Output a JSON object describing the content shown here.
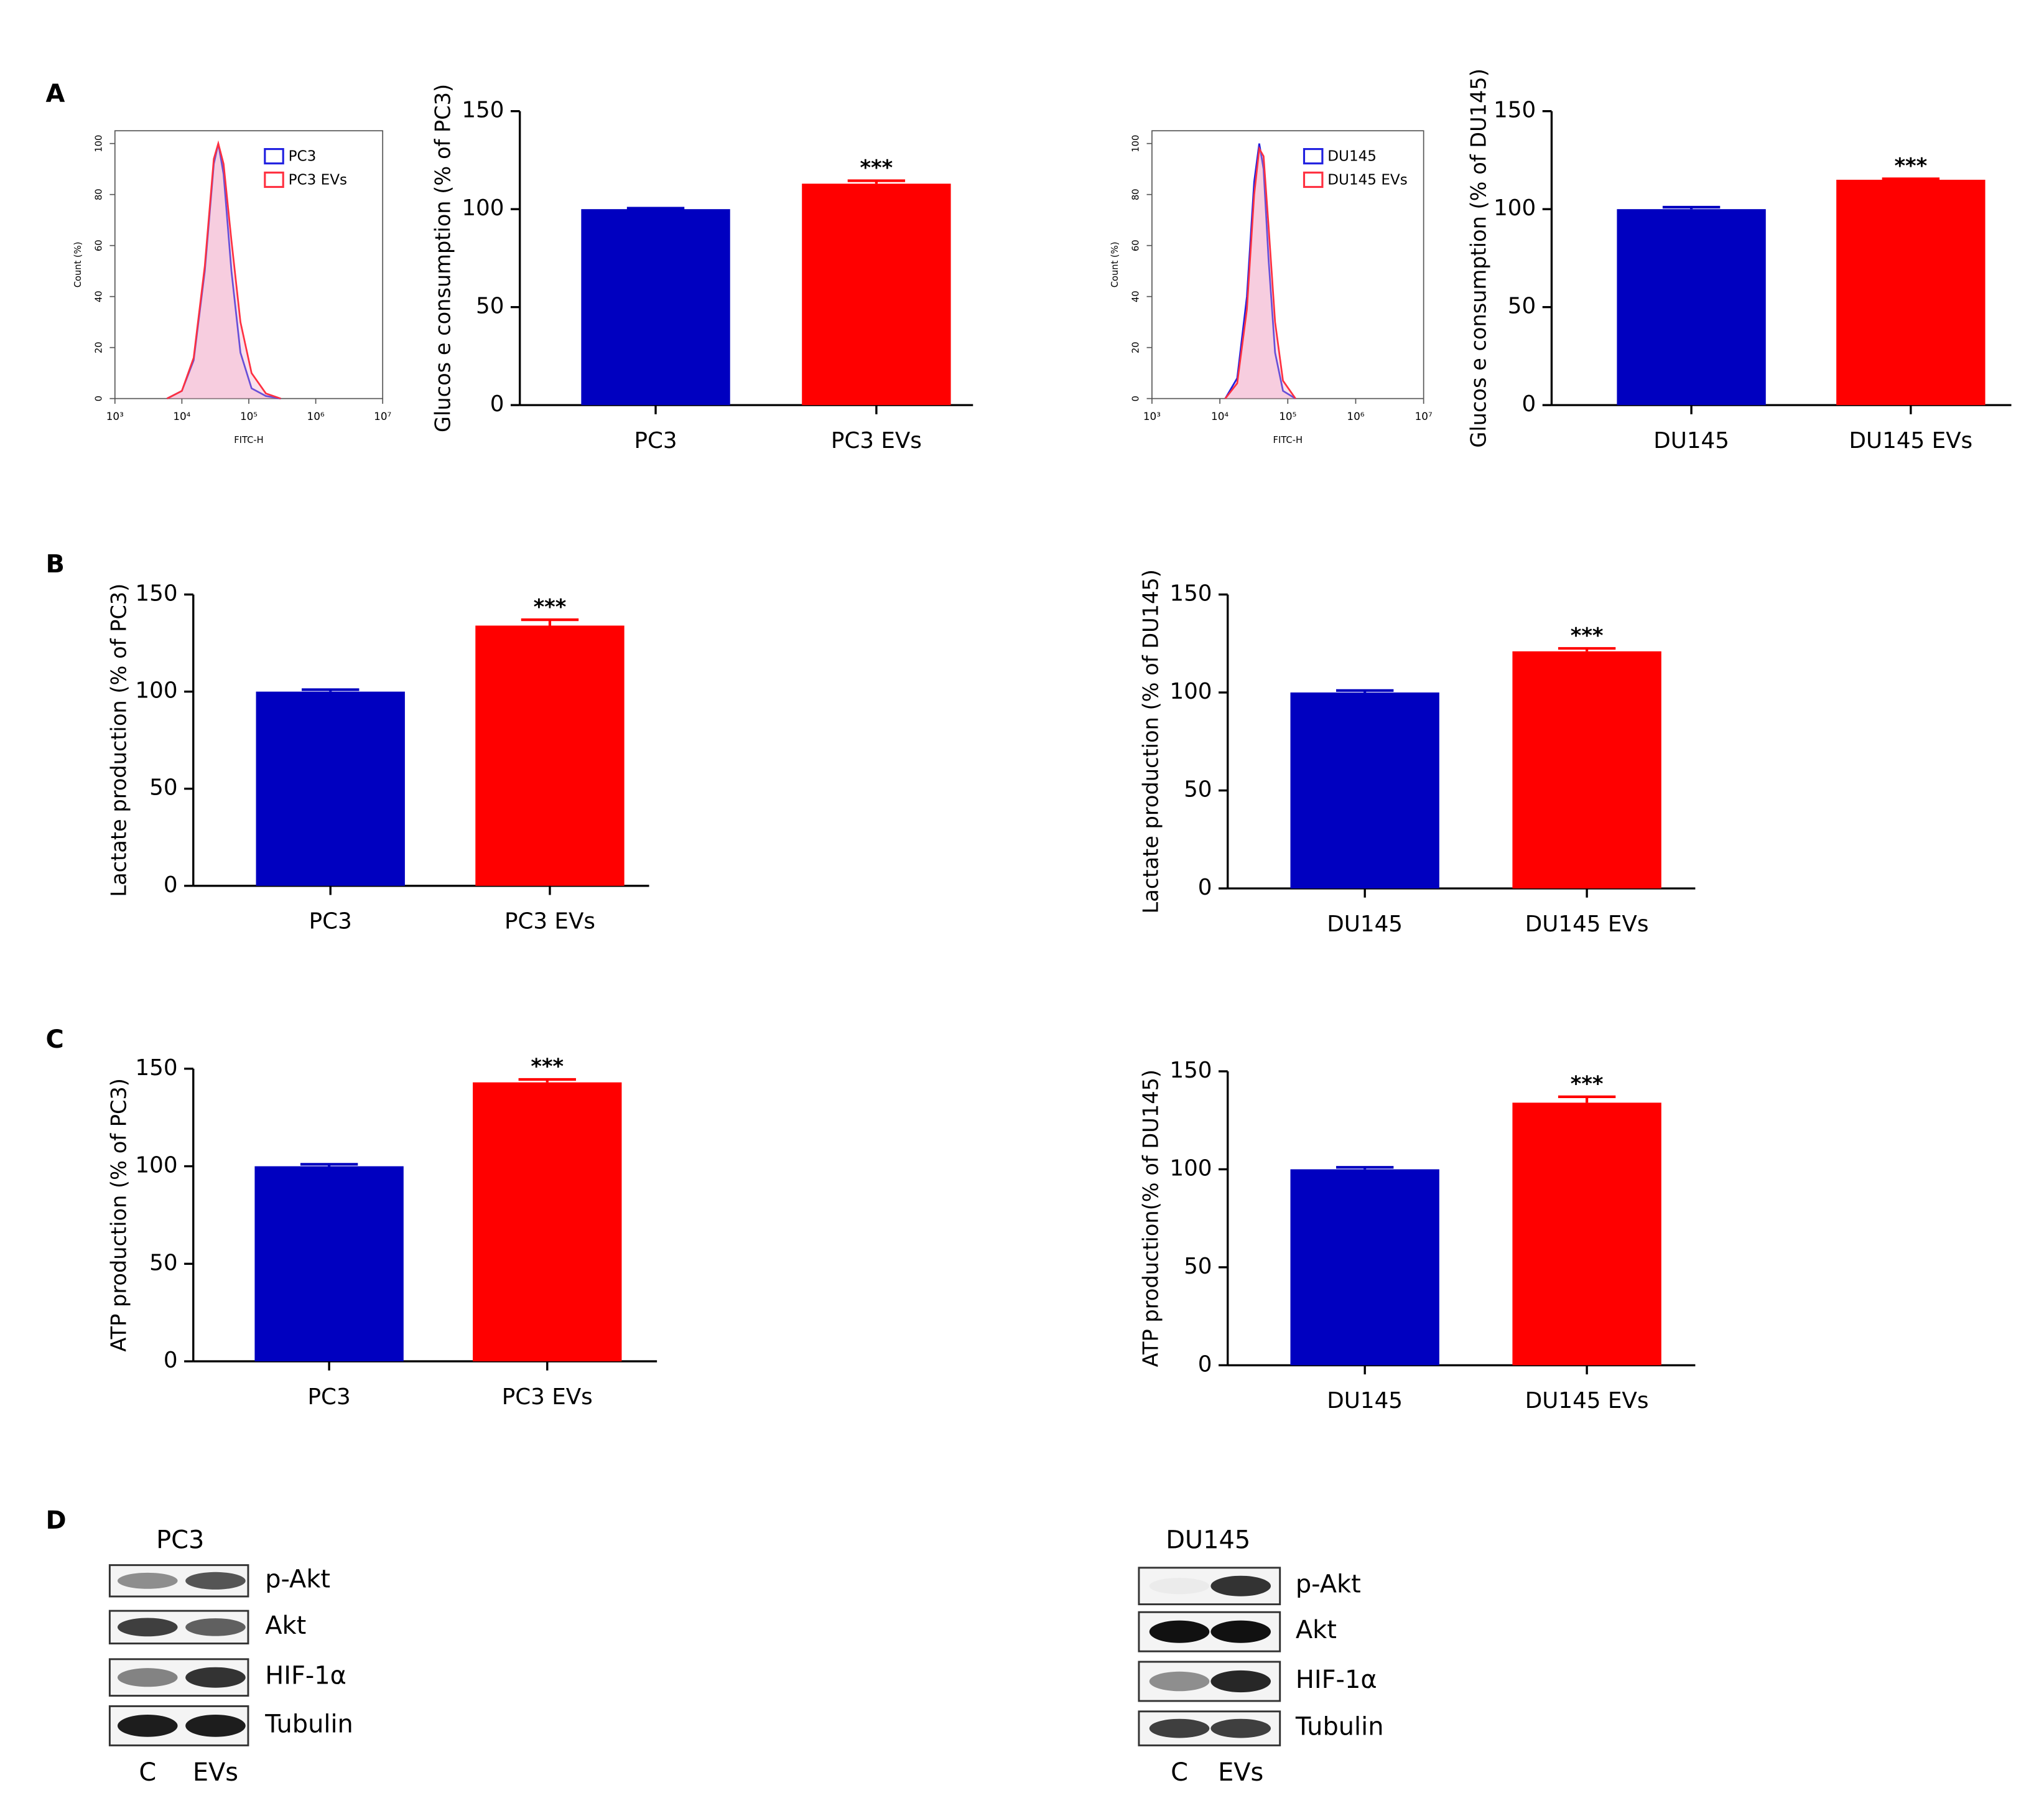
{
  "panel_labels": [
    "A",
    "B",
    "C",
    "D"
  ],
  "chart_data": [
    {
      "type": "line",
      "xlabel": "FITC-H",
      "ylabel": "Count (%)",
      "xscale": "log",
      "xlim": [
        1000,
        10000000
      ],
      "xticks": [
        {
          "value": 1000,
          "label": "10³"
        },
        {
          "value": 10000,
          "label": "10⁴"
        },
        {
          "value": 100000,
          "label": "10⁵"
        },
        {
          "value": 1000000,
          "label": "10⁶"
        },
        {
          "value": 10000000,
          "label": "10⁷"
        }
      ],
      "ylim": [
        0,
        105
      ],
      "yticks": [
        0,
        20,
        40,
        60,
        80,
        100
      ],
      "legend": "top-right",
      "series": [
        {
          "name": "PC3",
          "color": "#2020e0",
          "x": [
            6000,
            10000,
            15000,
            22000,
            30000,
            35000,
            42000,
            55000,
            75000,
            110000,
            180000,
            300000
          ],
          "values": [
            0,
            3,
            15,
            50,
            92,
            100,
            88,
            50,
            18,
            4,
            1,
            0
          ]
        },
        {
          "name": "PC3 EVs",
          "color": "#ff3040",
          "x": [
            6000,
            10000,
            15000,
            22000,
            30000,
            35000,
            42000,
            55000,
            75000,
            110000,
            180000,
            300000
          ],
          "values": [
            0,
            3,
            16,
            52,
            94,
            100,
            92,
            62,
            30,
            10,
            2,
            0
          ]
        }
      ]
    },
    {
      "type": "bar",
      "ylabel": "Glucos e consumption (% of PC3)",
      "categories": [
        "PC3",
        "PC3 EVs"
      ],
      "values": [
        100,
        113
      ],
      "errors": [
        0.5,
        1.5
      ],
      "colors": [
        "#0000c0",
        "#ff0000"
      ],
      "ylim": [
        0,
        150
      ],
      "yticks": [
        0,
        50,
        100,
        150
      ],
      "annotations": [
        {
          "text": "***",
          "x": "PC3 EVs"
        }
      ]
    },
    {
      "type": "line",
      "xlabel": "FITC-H",
      "ylabel": "Count (%)",
      "xscale": "log",
      "xlim": [
        1000,
        10000000
      ],
      "xticks": [
        {
          "value": 1000,
          "label": "10³"
        },
        {
          "value": 10000,
          "label": "10⁴"
        },
        {
          "value": 100000,
          "label": "10⁵"
        },
        {
          "value": 1000000,
          "label": "10⁶"
        },
        {
          "value": 10000000,
          "label": "10⁷"
        }
      ],
      "ylim": [
        0,
        105
      ],
      "yticks": [
        0,
        20,
        40,
        60,
        80,
        100
      ],
      "legend": "top-right",
      "series": [
        {
          "name": "DU145",
          "color": "#2020e0",
          "x": [
            12000,
            18000,
            25000,
            32000,
            38000,
            44000,
            52000,
            65000,
            85000,
            130000
          ],
          "values": [
            0,
            8,
            40,
            85,
            100,
            90,
            55,
            18,
            3,
            0
          ]
        },
        {
          "name": "DU145 EVs",
          "color": "#ff3040",
          "x": [
            12000,
            18000,
            25000,
            32000,
            38000,
            44000,
            52000,
            65000,
            85000,
            130000
          ],
          "values": [
            0,
            6,
            35,
            80,
            98,
            95,
            68,
            30,
            7,
            0
          ]
        }
      ]
    },
    {
      "type": "bar",
      "ylabel": "Glucos e consumption (% of DU145)",
      "categories": [
        "DU145",
        "DU145 EVs"
      ],
      "values": [
        100,
        115
      ],
      "errors": [
        1,
        0.5
      ],
      "colors": [
        "#0000c0",
        "#ff0000"
      ],
      "ylim": [
        0,
        150
      ],
      "yticks": [
        0,
        50,
        100,
        150
      ],
      "annotations": [
        {
          "text": "***",
          "x": "DU145 EVs"
        }
      ]
    },
    {
      "type": "bar",
      "ylabel": "Lactate production (% of PC3)",
      "categories": [
        "PC3",
        "PC3 EVs"
      ],
      "values": [
        100,
        134
      ],
      "errors": [
        1,
        3
      ],
      "colors": [
        "#0000c0",
        "#ff0000"
      ],
      "ylim": [
        0,
        150
      ],
      "yticks": [
        0,
        50,
        100,
        150
      ],
      "annotations": [
        {
          "text": "***",
          "x": "PC3 EVs"
        }
      ]
    },
    {
      "type": "bar",
      "ylabel": "Lactate production (% of DU145)",
      "categories": [
        "DU145",
        "DU145 EVs"
      ],
      "values": [
        100,
        121
      ],
      "errors": [
        1,
        1.5
      ],
      "colors": [
        "#0000c0",
        "#ff0000"
      ],
      "ylim": [
        0,
        150
      ],
      "yticks": [
        0,
        50,
        100,
        150
      ],
      "annotations": [
        {
          "text": "***",
          "x": "DU145 EVs"
        }
      ]
    },
    {
      "type": "bar",
      "ylabel": "ATP production (% of PC3)",
      "categories": [
        "PC3",
        "PC3 EVs"
      ],
      "values": [
        100,
        143
      ],
      "errors": [
        1,
        1.5
      ],
      "colors": [
        "#0000c0",
        "#ff0000"
      ],
      "ylim": [
        0,
        150
      ],
      "yticks": [
        0,
        50,
        100,
        150
      ],
      "annotations": [
        {
          "text": "***",
          "x": "PC3 EVs"
        }
      ]
    },
    {
      "type": "bar",
      "ylabel": "ATP production(% of DU145)",
      "categories": [
        "DU145",
        "DU145 EVs"
      ],
      "values": [
        100,
        134
      ],
      "errors": [
        1,
        3
      ],
      "colors": [
        "#0000c0",
        "#ff0000"
      ],
      "ylim": [
        0,
        150
      ],
      "yticks": [
        0,
        50,
        100,
        150
      ],
      "annotations": [
        {
          "text": "***",
          "x": "DU145 EVs"
        }
      ]
    }
  ],
  "blots": [
    {
      "title": "PC3",
      "lanes": [
        "C",
        "EVs"
      ],
      "proteins": [
        "p-Akt",
        "Akt",
        "HIF-1α",
        "Tubulin"
      ]
    },
    {
      "title": "DU145",
      "lanes": [
        "C",
        "EVs"
      ],
      "proteins": [
        "p-Akt",
        "Akt",
        "HIF-1α",
        "Tubulin"
      ]
    }
  ]
}
